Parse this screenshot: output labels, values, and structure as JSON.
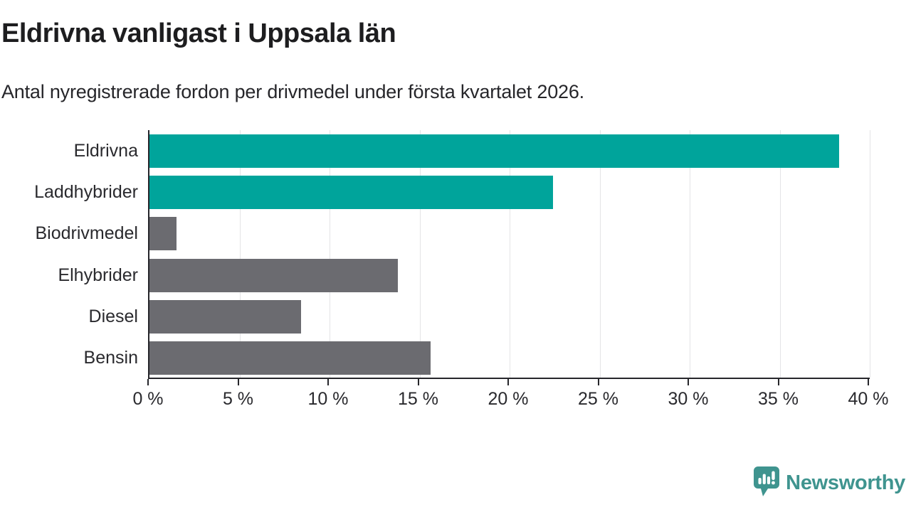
{
  "header": {
    "title": "Eldrivna vanligast i Uppsala län",
    "subtitle": "Antal nyregistrerade fordon per drivmedel under första kvartalet 2026."
  },
  "chart_data": {
    "type": "bar",
    "orientation": "horizontal",
    "title": "Eldrivna vanligast i Uppsala län",
    "subtitle": "Antal nyregistrerade fordon per drivmedel under första kvartalet 2026.",
    "categories": [
      "Eldrivna",
      "Laddhybrider",
      "Biodrivmedel",
      "Elhybrider",
      "Diesel",
      "Bensin"
    ],
    "values": [
      38.3,
      22.4,
      1.5,
      13.8,
      8.4,
      15.6
    ],
    "unit": "%",
    "xlim": [
      0,
      40
    ],
    "x_tick_values": [
      0,
      5,
      10,
      15,
      20,
      25,
      30,
      35,
      40
    ],
    "x_tick_labels": [
      "0 %",
      "5 %",
      "10 %",
      "15 %",
      "20 %",
      "25 %",
      "30 %",
      "35 %",
      "40 %"
    ],
    "grid": true,
    "legend": "none",
    "bar_colors": [
      "#00a49b",
      "#00a49b",
      "#6b6b70",
      "#6b6b70",
      "#6b6b70",
      "#6b6b70"
    ],
    "highlight_color": "#00a49b",
    "default_color": "#6b6b70"
  },
  "colors": {
    "accent_teal": "#00a49b",
    "neutral_gray": "#6b6b70",
    "axis": "#26262b",
    "gridline": "#e4e4e6",
    "logo_teal": "#3f948f"
  },
  "footer": {
    "brand": "Newsworthy"
  }
}
